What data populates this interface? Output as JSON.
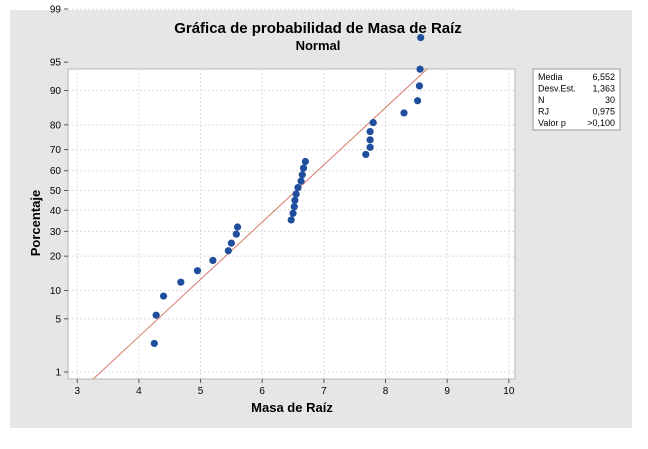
{
  "chart_data": {
    "type": "scatter",
    "title": "Gráfica de probabilidad de Masa de Raíz",
    "subtitle": "Normal",
    "xlabel": "Masa de Raíz",
    "ylabel": "Porcentaje",
    "xlim": [
      2.85,
      10.1
    ],
    "x_ticks": [
      3,
      4,
      5,
      6,
      7,
      8,
      9,
      10
    ],
    "y_scale": "normal-probability",
    "y_ticks": [
      1,
      5,
      10,
      20,
      30,
      40,
      50,
      60,
      70,
      80,
      90,
      95,
      99
    ],
    "ylim": [
      1,
      99
    ],
    "grid": true,
    "fit_line": {
      "mean": 6.552,
      "stdev": 1.363,
      "color": "#d9786b"
    },
    "point_color": "#1f4e9c",
    "points": [
      {
        "x": 4.25,
        "y": 2.5
      },
      {
        "x": 4.28,
        "y": 5.5
      },
      {
        "x": 4.4,
        "y": 8.8
      },
      {
        "x": 4.68,
        "y": 12.0
      },
      {
        "x": 4.95,
        "y": 15.2
      },
      {
        "x": 5.2,
        "y": 18.5
      },
      {
        "x": 5.45,
        "y": 22.0
      },
      {
        "x": 5.5,
        "y": 25.0
      },
      {
        "x": 5.58,
        "y": 28.8
      },
      {
        "x": 5.6,
        "y": 32.0
      },
      {
        "x": 6.47,
        "y": 35.3
      },
      {
        "x": 6.5,
        "y": 38.5
      },
      {
        "x": 6.52,
        "y": 41.8
      },
      {
        "x": 6.53,
        "y": 45.0
      },
      {
        "x": 6.55,
        "y": 48.2
      },
      {
        "x": 6.58,
        "y": 51.5
      },
      {
        "x": 6.63,
        "y": 54.8
      },
      {
        "x": 6.65,
        "y": 58.0
      },
      {
        "x": 6.67,
        "y": 61.3
      },
      {
        "x": 6.7,
        "y": 64.5
      },
      {
        "x": 7.68,
        "y": 67.8
      },
      {
        "x": 7.75,
        "y": 71.0
      },
      {
        "x": 7.75,
        "y": 74.2
      },
      {
        "x": 7.75,
        "y": 77.5
      },
      {
        "x": 7.8,
        "y": 80.8
      },
      {
        "x": 8.3,
        "y": 84.0
      },
      {
        "x": 8.52,
        "y": 87.5
      },
      {
        "x": 8.55,
        "y": 91.0
      },
      {
        "x": 8.56,
        "y": 94.0
      },
      {
        "x": 8.57,
        "y": 97.5
      }
    ],
    "stats": [
      {
        "label": "Media",
        "value": "6,552"
      },
      {
        "label": "Desv.Est.",
        "value": "1,363"
      },
      {
        "label": "N",
        "value": "30"
      },
      {
        "label": "RJ",
        "value": "0,975"
      },
      {
        "label": "Valor p",
        "value": ">0,100"
      }
    ]
  }
}
